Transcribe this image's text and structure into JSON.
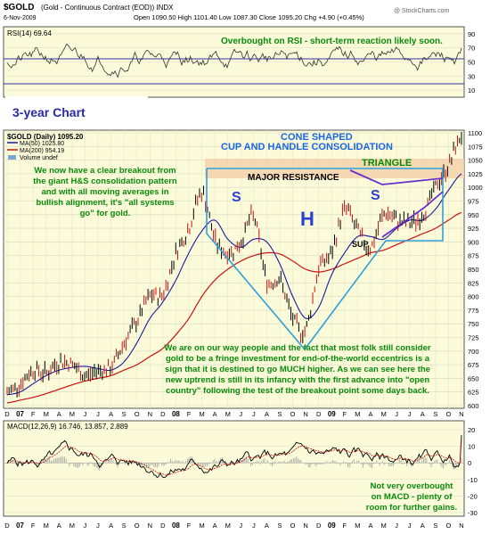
{
  "header": {
    "symbol": "$GOLD",
    "description": "(Gold - Continuous Contract (EOD)) INDX",
    "date": "6-Nov-2009",
    "ohlc": "Open 1090.50  High 1101.40  Low 1087.30  Close 1095.20  Chg +4.90 (+0.45%)",
    "watermark": "@ StockCharts.com"
  },
  "rsi_panel": {
    "label": "RSI(14) 69.64",
    "ticks": [
      "90",
      "70",
      "50",
      "30",
      "10"
    ],
    "annotation": "Overbought on RSI - short-term reaction likely soon."
  },
  "price_panel": {
    "label_title": "3-year Chart",
    "legend": {
      "main": "$GOLD (Daily) 1095.20",
      "ma50": "MA(50) 1025.80",
      "ma200": "MA(200) 954.19",
      "volume": "Volume undef"
    },
    "ticks": [
      "1100",
      "1075",
      "1050",
      "1025",
      "1000",
      "975",
      "950",
      "925",
      "900",
      "875",
      "850",
      "825",
      "800",
      "775",
      "750",
      "725",
      "700",
      "675",
      "650",
      "625",
      "600"
    ],
    "annotations": {
      "cone": "CONE SHAPED",
      "cup": "CUP AND HANDLE CONSOLIDATION",
      "triangle": "TRIANGLE",
      "resistance": "MAJOR RESISTANCE",
      "s_left": "S",
      "h": "H",
      "s_right": "S",
      "sup": "SUP.",
      "left_text": [
        "We now have a clear breakout from",
        "the giant H&S consolidation pattern",
        "and with all moving averages in",
        "bullish alignment, it's \"all systems",
        "go\" for gold."
      ],
      "bottom_text": [
        "We are on our way people and the fact that most folk still consider",
        "gold to be a fringe investment for end-of-the-world eccentrics is a",
        "sign that it is destined to go MUCH higher. As we can see here the",
        "new uptrend is still in its infancy with the first advance into \"open",
        "country\" following the test of the breakout point some days back."
      ]
    }
  },
  "macd_panel": {
    "label": "MACD(12,26,9) 16.746, 13.857, 2.889",
    "ticks": [
      "20",
      "10",
      "0",
      "-10",
      "-20",
      "-30"
    ],
    "annotation": [
      "Not very overbought",
      "on MACD - plenty of",
      "room for further gains."
    ]
  },
  "x_axis": {
    "labels": [
      "D",
      "07",
      "F",
      "M",
      "A",
      "M",
      "J",
      "J",
      "A",
      "S",
      "O",
      "N",
      "D",
      "08",
      "F",
      "M",
      "A",
      "M",
      "J",
      "J",
      "A",
      "S",
      "O",
      "N",
      "D",
      "09",
      "F",
      "M",
      "A",
      "M",
      "J",
      "J",
      "A",
      "S",
      "O",
      "N"
    ]
  },
  "chart_data": {
    "type": "line",
    "title": "$GOLD (Daily) 1095.20",
    "x": [
      "2006-12",
      "2007-01",
      "2007-02",
      "2007-03",
      "2007-04",
      "2007-05",
      "2007-06",
      "2007-07",
      "2007-08",
      "2007-09",
      "2007-10",
      "2007-11",
      "2007-12",
      "2008-01",
      "2008-02",
      "2008-03",
      "2008-04",
      "2008-05",
      "2008-06",
      "2008-07",
      "2008-08",
      "2008-09",
      "2008-10",
      "2008-11",
      "2008-12",
      "2009-01",
      "2009-02",
      "2009-03",
      "2009-04",
      "2009-05",
      "2009-06",
      "2009-07",
      "2009-08",
      "2009-09",
      "2009-10",
      "2009-11"
    ],
    "series": [
      {
        "name": "$GOLD",
        "color": "#000000",
        "values": [
          625,
          640,
          665,
          660,
          680,
          675,
          655,
          665,
          670,
          715,
          755,
          800,
          805,
          880,
          925,
          990,
          905,
          880,
          900,
          945,
          830,
          830,
          760,
          740,
          850,
          880,
          960,
          920,
          890,
          950,
          940,
          935,
          950,
          1000,
          1040,
          1095
        ]
      },
      {
        "name": "MA(50)",
        "color": "#1a1aa0",
        "values": [
          620,
          625,
          640,
          655,
          665,
          670,
          672,
          668,
          665,
          680,
          715,
          760,
          790,
          830,
          880,
          920,
          940,
          905,
          890,
          905,
          900,
          860,
          800,
          760,
          780,
          840,
          880,
          910,
          910,
          905,
          925,
          940,
          940,
          960,
          995,
          1025
        ]
      },
      {
        "name": "MA(200)",
        "color": "#cc1111",
        "values": [
          605,
          610,
          615,
          622,
          630,
          638,
          645,
          650,
          655,
          665,
          675,
          690,
          705,
          730,
          760,
          800,
          830,
          850,
          865,
          875,
          880,
          878,
          865,
          850,
          845,
          850,
          860,
          870,
          880,
          885,
          895,
          905,
          915,
          925,
          940,
          954
        ]
      }
    ],
    "ylim": [
      600,
      1100
    ],
    "rsi": {
      "name": "RSI(14)",
      "ticks": [
        90,
        70,
        50,
        30,
        10
      ],
      "last": 69.64
    },
    "macd": {
      "name": "MACD(12,26,9)",
      "values": [
        16.746,
        13.857,
        2.889
      ],
      "ylim": [
        -30,
        20
      ]
    },
    "grid": true
  },
  "colors": {
    "panel_bg": "#fbfbda",
    "band": "#f2d2ac",
    "annotation_blue": "#1a66e6",
    "annotation_green": "#0a8a0a",
    "ma50": "#1a1aa0",
    "ma200": "#cc1111",
    "cone": "#2f9fd9"
  }
}
